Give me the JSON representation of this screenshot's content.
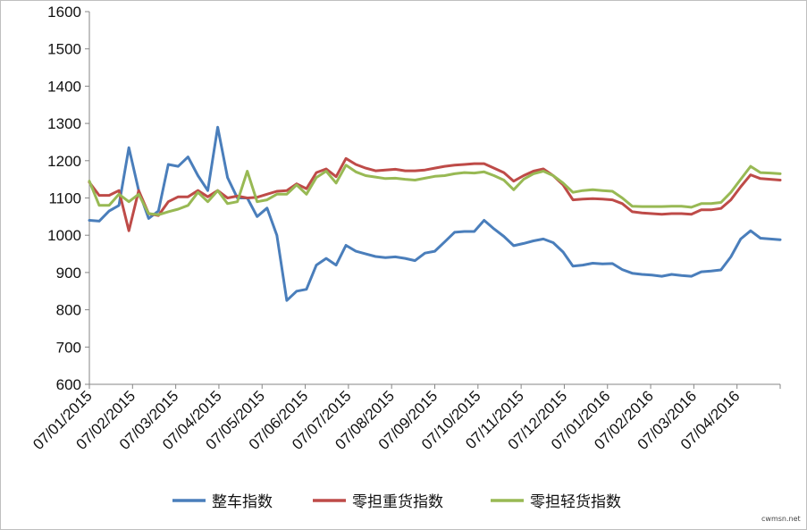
{
  "chart_data": {
    "type": "line",
    "title": "",
    "xlabel": "",
    "ylabel": "",
    "ylim": [
      600,
      1600
    ],
    "yticks": [
      600,
      700,
      800,
      900,
      1000,
      1100,
      1200,
      1300,
      1400,
      1500,
      1600
    ],
    "xtick_labels": [
      "07/01/2015",
      "07/02/2015",
      "07/03/2015",
      "07/04/2015",
      "07/05/2015",
      "07/06/2015",
      "07/07/2015",
      "07/08/2015",
      "07/09/2015",
      "07/10/2015",
      "07/11/2015",
      "07/12/2015",
      "07/01/2016",
      "07/02/2016",
      "07/03/2016",
      "07/04/2016"
    ],
    "grid": false,
    "legend_position": "bottom",
    "series": [
      {
        "name": "整车指数",
        "color": "#4a7ebb",
        "values": [
          1040,
          1038,
          1065,
          1080,
          1235,
          1120,
          1045,
          1065,
          1190,
          1185,
          1210,
          1160,
          1120,
          1290,
          1155,
          1100,
          1100,
          1050,
          1073,
          1000,
          825,
          850,
          855,
          920,
          938,
          920,
          973,
          957,
          950,
          943,
          940,
          942,
          938,
          932,
          952,
          957,
          982,
          1008,
          1010,
          1010,
          1040,
          1017,
          997,
          972,
          978,
          985,
          990,
          980,
          955,
          917,
          920,
          925,
          923,
          924,
          908,
          898,
          895,
          893,
          890,
          895,
          892,
          890,
          902,
          904,
          907,
          942,
          990,
          1012,
          992,
          990,
          988
        ]
      },
      {
        "name": "零担重货指数",
        "color": "#be4b48",
        "values": [
          1142,
          1107,
          1107,
          1120,
          1012,
          1120,
          1058,
          1053,
          1090,
          1103,
          1103,
          1120,
          1103,
          1120,
          1100,
          1105,
          1100,
          1102,
          1110,
          1118,
          1120,
          1138,
          1125,
          1168,
          1178,
          1157,
          1206,
          1190,
          1180,
          1173,
          1175,
          1177,
          1173,
          1173,
          1175,
          1180,
          1185,
          1188,
          1190,
          1192,
          1192,
          1180,
          1168,
          1145,
          1160,
          1172,
          1178,
          1160,
          1135,
          1095,
          1097,
          1098,
          1097,
          1095,
          1085,
          1063,
          1060,
          1058,
          1056,
          1058,
          1058,
          1056,
          1068,
          1068,
          1072,
          1095,
          1130,
          1162,
          1152,
          1150,
          1148
        ]
      },
      {
        "name": "零担轻货指数",
        "color": "#98b954",
        "values": [
          1145,
          1080,
          1080,
          1110,
          1090,
          1110,
          1058,
          1055,
          1063,
          1070,
          1080,
          1115,
          1090,
          1120,
          1085,
          1090,
          1172,
          1090,
          1095,
          1110,
          1110,
          1135,
          1110,
          1155,
          1172,
          1140,
          1188,
          1170,
          1160,
          1156,
          1152,
          1153,
          1150,
          1148,
          1153,
          1158,
          1160,
          1165,
          1168,
          1167,
          1170,
          1160,
          1148,
          1122,
          1150,
          1165,
          1172,
          1160,
          1140,
          1115,
          1120,
          1122,
          1120,
          1118,
          1100,
          1078,
          1077,
          1077,
          1077,
          1078,
          1078,
          1075,
          1085,
          1085,
          1088,
          1115,
          1150,
          1185,
          1168,
          1167,
          1165
        ]
      }
    ]
  },
  "watermark": "cwmsn.net"
}
